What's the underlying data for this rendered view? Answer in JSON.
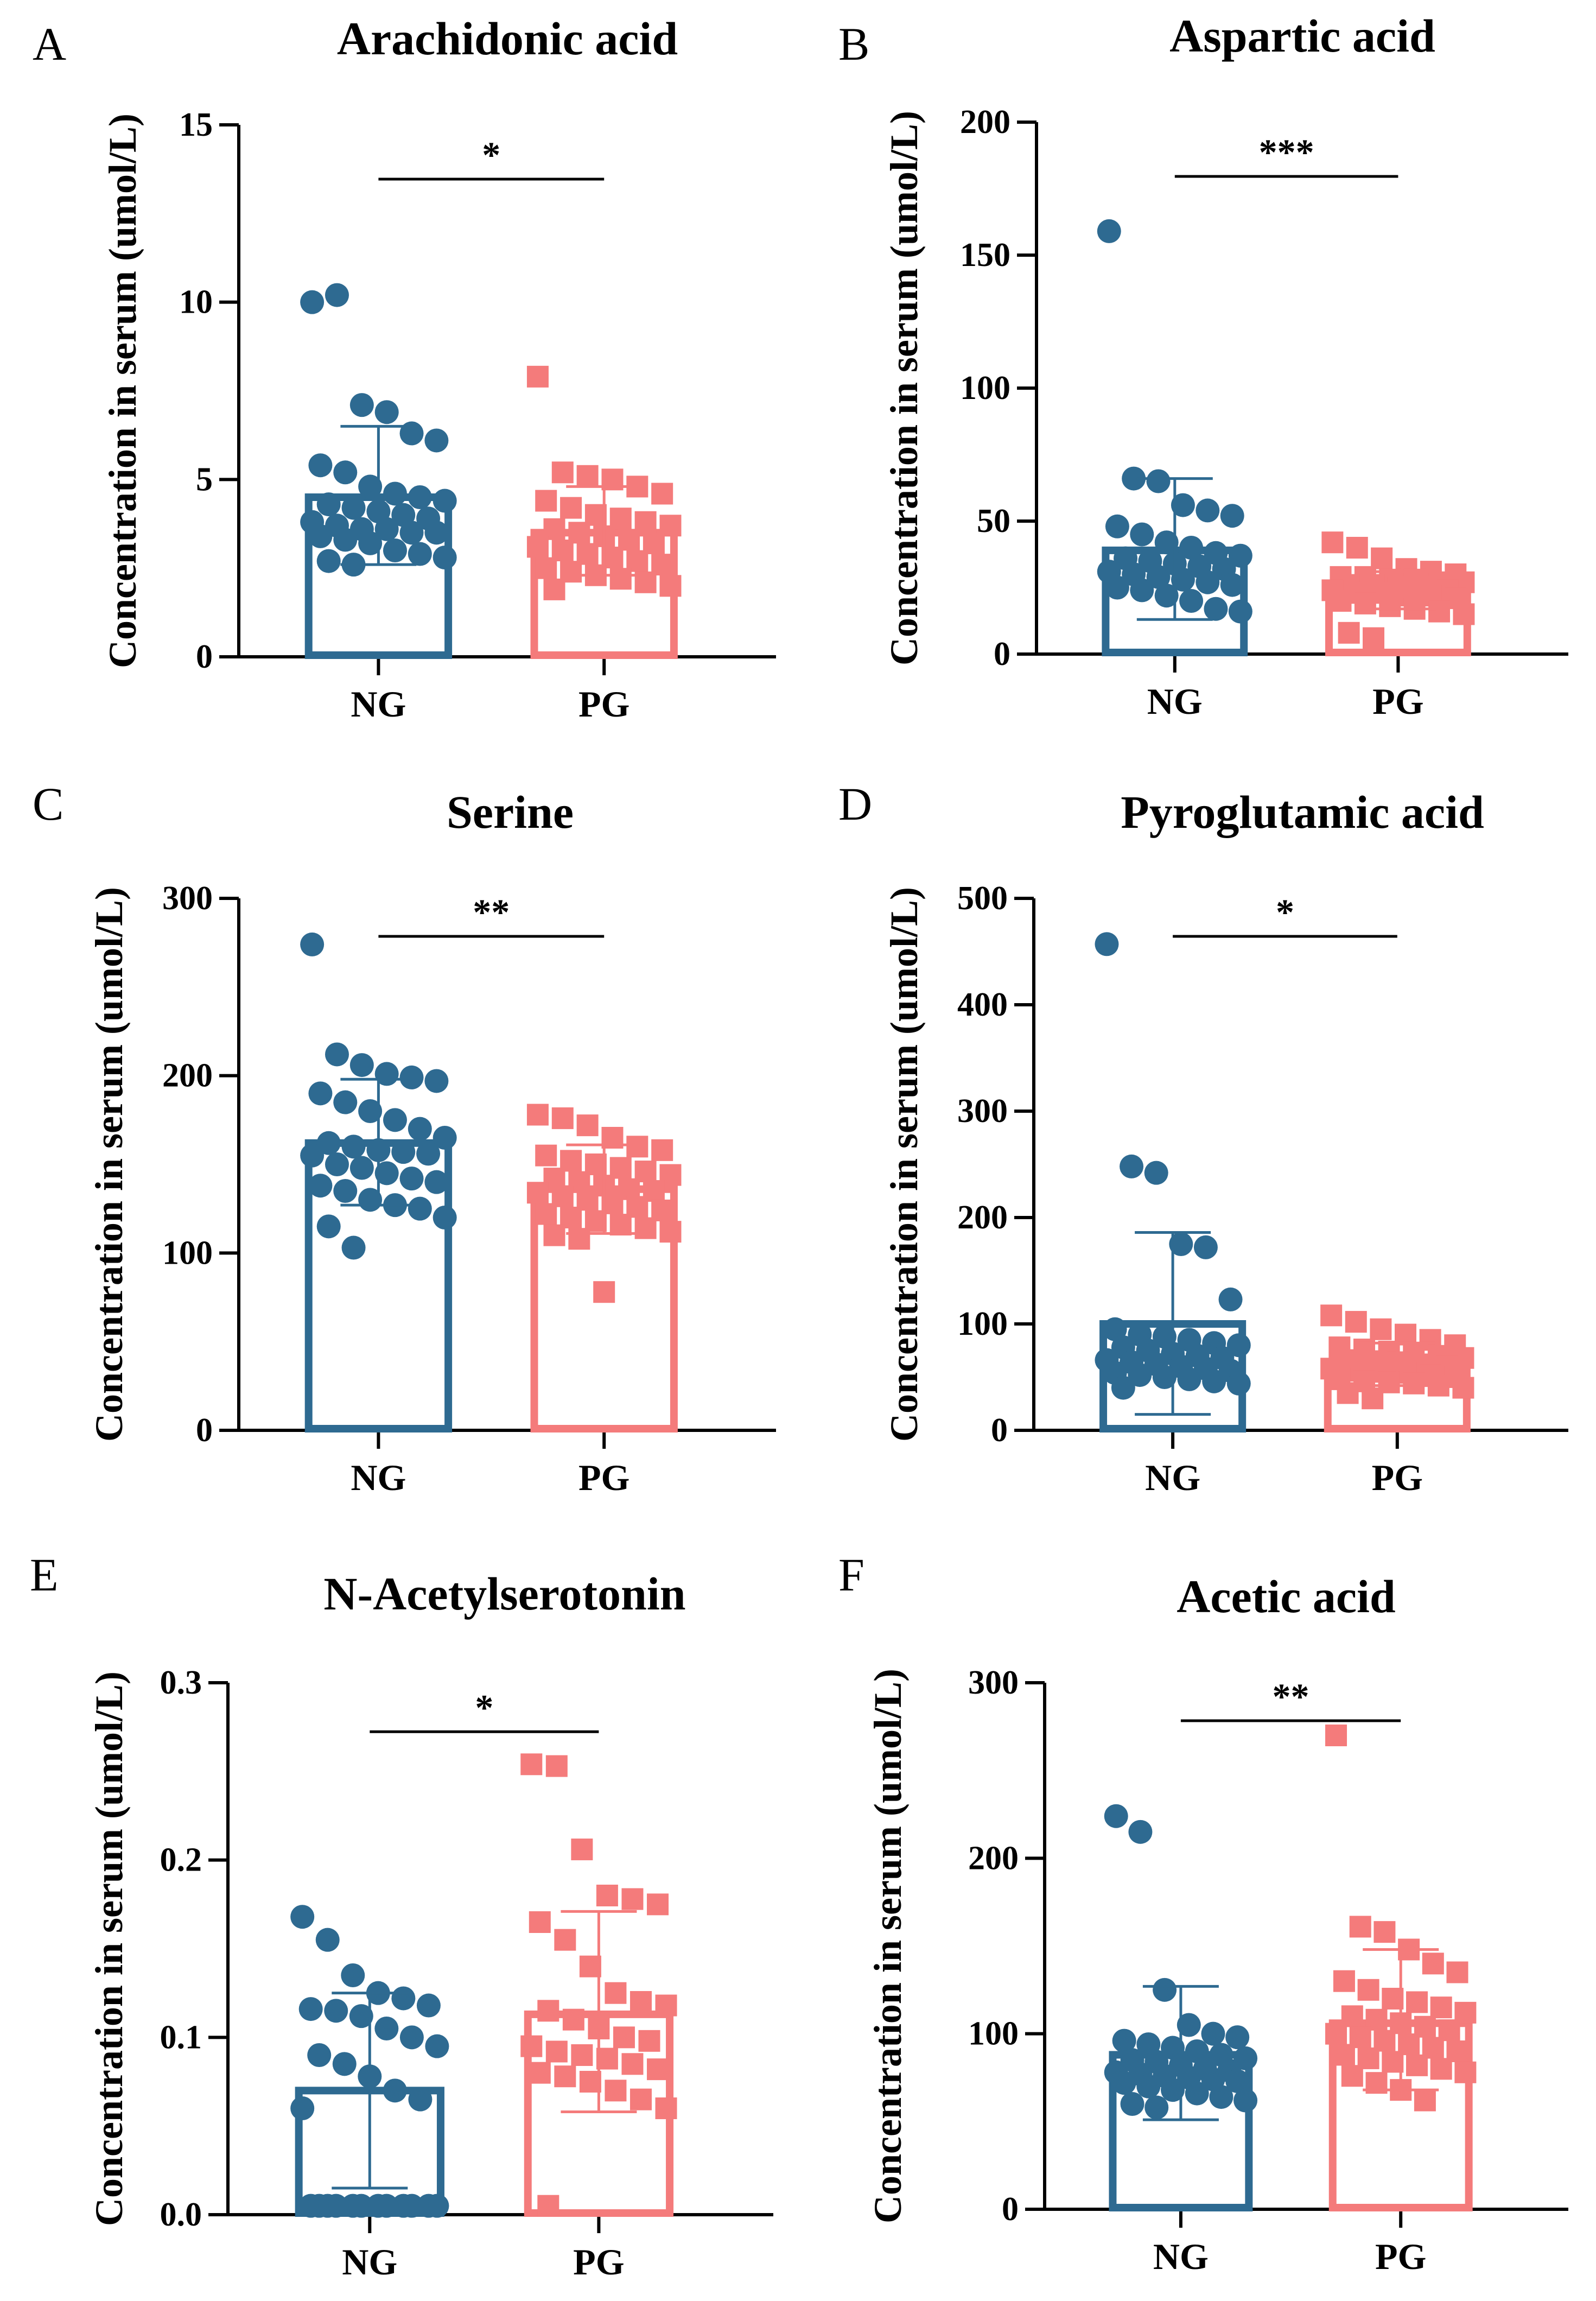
{
  "figure": {
    "ylabel_common": "Concentration in serum (umol/L)",
    "colors": {
      "NG": "#2e6a91",
      "PG": "#f47b7b",
      "axis": "#000000"
    }
  },
  "chart_data": [
    {
      "panel": "A",
      "type": "bar",
      "title": "Arachidonic acid",
      "ylabel": "Concentration in serum (umol/L)",
      "categories": [
        "NG",
        "PG"
      ],
      "ylim": [
        0,
        15
      ],
      "yticks": [
        0,
        5,
        10,
        15
      ],
      "significance": "*",
      "series": [
        {
          "name": "NG",
          "marker": "circle",
          "mean": 4.5,
          "sd_low": 2.6,
          "sd_high": 6.5,
          "points": [
            10.0,
            10.2,
            7.1,
            6.9,
            6.3,
            6.1,
            5.4,
            5.2,
            4.8,
            4.6,
            4.5,
            4.4,
            4.3,
            4.2,
            4.1,
            4.0,
            3.9,
            3.8,
            3.7,
            3.6,
            3.6,
            3.5,
            3.5,
            3.4,
            3.3,
            3.2,
            3.0,
            2.9,
            2.8,
            2.7,
            2.6
          ]
        },
        {
          "name": "PG",
          "marker": "square",
          "mean": 3.5,
          "sd_low": 2.3,
          "sd_high": 4.8,
          "points": [
            7.9,
            5.2,
            5.1,
            5.0,
            4.8,
            4.6,
            4.4,
            4.2,
            4.0,
            3.9,
            3.8,
            3.7,
            3.6,
            3.5,
            3.4,
            3.3,
            3.2,
            3.1,
            3.0,
            2.9,
            2.8,
            2.7,
            2.6,
            2.5,
            2.4,
            2.3,
            2.2,
            2.1,
            2.0,
            1.9
          ]
        }
      ]
    },
    {
      "panel": "B",
      "type": "bar",
      "title": "Aspartic acid",
      "ylabel": "Concentration in serum (umol/L)",
      "categories": [
        "NG",
        "PG"
      ],
      "ylim": [
        0,
        200
      ],
      "yticks": [
        0,
        50,
        100,
        150,
        200
      ],
      "significance": "***",
      "series": [
        {
          "name": "NG",
          "marker": "circle",
          "mean": 39,
          "sd_low": 13,
          "sd_high": 66,
          "points": [
            159,
            66,
            65,
            56,
            54,
            52,
            48,
            45,
            42,
            40,
            38,
            37,
            36,
            35,
            34,
            33,
            32,
            31,
            30,
            29,
            28,
            27,
            26,
            25,
            24,
            22,
            20,
            17,
            16
          ]
        },
        {
          "name": "PG",
          "marker": "square",
          "mean": 25,
          "sd_low": 17,
          "sd_high": 31,
          "points": [
            42,
            40,
            36,
            32,
            31,
            30,
            29,
            29,
            28,
            28,
            27,
            27,
            26,
            26,
            25,
            25,
            24,
            24,
            23,
            23,
            22,
            22,
            21,
            20,
            19,
            18,
            17,
            16,
            15,
            8,
            6
          ]
        }
      ]
    },
    {
      "panel": "C",
      "type": "bar",
      "title": "Serine",
      "ylabel": "Concentration in serum (umol/L)",
      "categories": [
        "NG",
        "PG"
      ],
      "ylim": [
        0,
        300
      ],
      "yticks": [
        0,
        100,
        200,
        300
      ],
      "significance": "**",
      "series": [
        {
          "name": "NG",
          "marker": "circle",
          "mean": 162,
          "sd_low": 127,
          "sd_high": 198,
          "points": [
            274,
            212,
            206,
            201,
            199,
            197,
            190,
            185,
            180,
            175,
            170,
            165,
            162,
            160,
            158,
            157,
            156,
            155,
            150,
            148,
            145,
            142,
            140,
            138,
            135,
            130,
            127,
            125,
            120,
            115,
            103
          ]
        },
        {
          "name": "PG",
          "marker": "square",
          "mean": 136,
          "sd_low": 111,
          "sd_high": 161,
          "points": [
            178,
            176,
            172,
            165,
            160,
            158,
            155,
            152,
            150,
            148,
            146,
            144,
            142,
            140,
            138,
            136,
            135,
            134,
            132,
            130,
            128,
            126,
            124,
            122,
            120,
            118,
            116,
            114,
            112,
            110,
            108,
            78
          ]
        }
      ]
    },
    {
      "panel": "D",
      "type": "bar",
      "title": "Pyroglutamic acid",
      "ylabel": "Concentration in serum (umol/L)",
      "categories": [
        "NG",
        "PG"
      ],
      "ylim": [
        0,
        500
      ],
      "yticks": [
        0,
        100,
        200,
        300,
        400,
        500
      ],
      "significance": "*",
      "series": [
        {
          "name": "NG",
          "marker": "circle",
          "mean": 100,
          "sd_low": 15,
          "sd_high": 186,
          "points": [
            457,
            248,
            242,
            175,
            172,
            123,
            95,
            90,
            88,
            85,
            82,
            80,
            78,
            75,
            72,
            70,
            68,
            66,
            64,
            62,
            60,
            58,
            56,
            54,
            52,
            50,
            48,
            46,
            44,
            40
          ]
        },
        {
          "name": "PG",
          "marker": "square",
          "mean": 62,
          "sd_low": 42,
          "sd_high": 82,
          "points": [
            108,
            102,
            95,
            90,
            85,
            80,
            78,
            76,
            74,
            72,
            70,
            68,
            66,
            65,
            64,
            62,
            60,
            58,
            56,
            55,
            54,
            52,
            50,
            48,
            46,
            45,
            44,
            42,
            40,
            35,
            30
          ]
        }
      ]
    },
    {
      "panel": "E",
      "type": "bar",
      "title": "N-Acetylserotonin",
      "ylabel": "Concentration in serum (umol/L)",
      "categories": [
        "NG",
        "PG"
      ],
      "ylim": [
        0,
        0.3
      ],
      "yticks": [
        "0.0",
        "0.1",
        "0.2",
        "0.3"
      ],
      "significance": "*",
      "series": [
        {
          "name": "NG",
          "marker": "circle",
          "mean": 0.07,
          "sd_low": 0.015,
          "sd_high": 0.125,
          "points": [
            0.168,
            0.155,
            0.135,
            0.125,
            0.122,
            0.118,
            0.116,
            0.115,
            0.112,
            0.105,
            0.1,
            0.095,
            0.09,
            0.085,
            0.078,
            0.07,
            0.065,
            0.06,
            0.005,
            0.005,
            0.005,
            0.005,
            0.005,
            0.005,
            0.005,
            0.005,
            0.005,
            0.005,
            0.005,
            0.005
          ]
        },
        {
          "name": "PG",
          "marker": "square",
          "mean": 0.113,
          "sd_low": 0.058,
          "sd_high": 0.171,
          "points": [
            0.254,
            0.253,
            0.206,
            0.18,
            0.178,
            0.175,
            0.165,
            0.155,
            0.14,
            0.125,
            0.12,
            0.118,
            0.115,
            0.11,
            0.105,
            0.1,
            0.098,
            0.095,
            0.092,
            0.09,
            0.088,
            0.085,
            0.082,
            0.08,
            0.078,
            0.075,
            0.07,
            0.065,
            0.06,
            0.005
          ]
        }
      ]
    },
    {
      "panel": "F",
      "type": "bar",
      "title": "Acetic acid",
      "ylabel": "Concentration in serum (umol/L)",
      "categories": [
        "NG",
        "PG"
      ],
      "ylim": [
        0,
        300
      ],
      "yticks": [
        0,
        100,
        200,
        300
      ],
      "significance": "**",
      "series": [
        {
          "name": "NG",
          "marker": "circle",
          "mean": 88,
          "sd_low": 51,
          "sd_high": 127,
          "points": [
            224,
            215,
            125,
            105,
            100,
            98,
            96,
            94,
            92,
            90,
            88,
            86,
            85,
            84,
            82,
            80,
            79,
            78,
            77,
            76,
            75,
            74,
            73,
            72,
            70,
            68,
            66,
            64,
            62,
            60,
            58
          ]
        },
        {
          "name": "PG",
          "marker": "square",
          "mean": 106,
          "sd_low": 68,
          "sd_high": 148,
          "points": [
            270,
            161,
            158,
            148,
            140,
            135,
            130,
            125,
            120,
            118,
            115,
            112,
            110,
            108,
            106,
            104,
            102,
            100,
            98,
            96,
            94,
            92,
            90,
            88,
            86,
            84,
            82,
            80,
            78,
            76,
            72,
            68,
            62
          ]
        }
      ]
    }
  ]
}
